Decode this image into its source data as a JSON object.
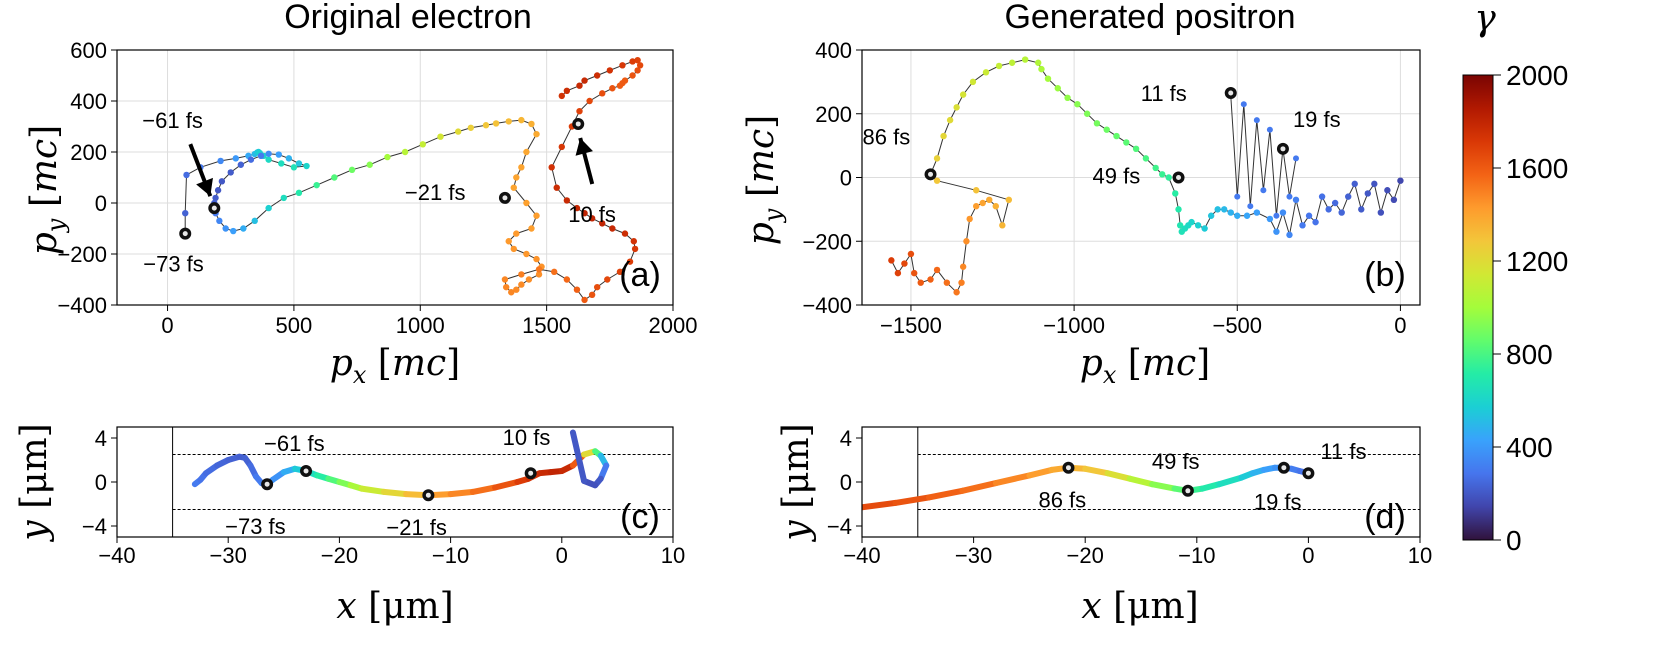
{
  "colorbar": {
    "label": "γ",
    "min": 0,
    "max": 2000,
    "ticks": [
      "2000",
      "1600",
      "1200",
      "800",
      "400",
      "0"
    ],
    "colors": [
      "#30123b",
      "#4145ab",
      "#4675ed",
      "#39a2fc",
      "#1bcfd4",
      "#24eca6",
      "#61fc6c",
      "#a4fc3b",
      "#d1e834",
      "#f3c63a",
      "#fe9b2d",
      "#f36315",
      "#d93806",
      "#b11901",
      "#7a0403"
    ]
  },
  "chart_data": [
    {
      "id": "a",
      "type": "scatter",
      "title": "Original electron",
      "panel_label": "(a)",
      "xlabel": "p_x [mc]",
      "ylabel": "p_y [mc]",
      "xlim": [
        -200,
        2000
      ],
      "ylim": [
        -400,
        600
      ],
      "xticks": [
        0,
        500,
        1000,
        1500,
        2000
      ],
      "yticks": [
        -400,
        -200,
        0,
        200,
        400,
        600
      ],
      "xtick_labels": [
        "0",
        "500",
        "1000",
        "1500",
        "2000"
      ],
      "ytick_labels": [
        "−400",
        "−200",
        "0",
        "200",
        "400",
        "600"
      ],
      "grid": true,
      "trajectory": {
        "px": [
          70,
          70,
          75,
          130,
          210,
          270,
          320,
          345,
          355,
          360,
          365,
          380,
          400,
          450,
          500,
          550,
          520,
          480,
          440,
          400,
          370,
          330,
          290,
          250,
          215,
          200,
          190,
          185,
          180,
          190,
          205,
          230,
          260,
          300,
          345,
          400,
          460,
          520,
          590,
          660,
          730,
          800,
          870,
          940,
          1010,
          1080,
          1150,
          1200,
          1260,
          1300,
          1350,
          1400,
          1440,
          1460,
          1420,
          1400,
          1380,
          1370,
          1420,
          1460,
          1440,
          1380,
          1350,
          1370,
          1420,
          1460,
          1480,
          1470,
          1430,
          1400,
          1380,
          1360,
          1340,
          1335,
          1400,
          1470,
          1530,
          1580,
          1620,
          1650,
          1680,
          1700,
          1740,
          1790,
          1830,
          1850,
          1845,
          1810,
          1760,
          1720,
          1680,
          1650,
          1620,
          1580,
          1540,
          1520,
          1560,
          1600,
          1630,
          1670,
          1720,
          1760,
          1790,
          1800,
          1810,
          1840,
          1860,
          1870,
          1860,
          1840,
          1800,
          1750,
          1700,
          1650,
          1630,
          1580,
          1560
        ],
        "py": [
          -120,
          -40,
          110,
          140,
          165,
          175,
          185,
          192,
          198,
          200,
          196,
          185,
          170,
          155,
          140,
          145,
          155,
          175,
          190,
          193,
          185,
          170,
          150,
          120,
          85,
          50,
          20,
          0,
          -20,
          -40,
          -70,
          -100,
          -110,
          -100,
          -70,
          -20,
          20,
          40,
          70,
          100,
          130,
          150,
          180,
          200,
          230,
          260,
          280,
          295,
          305,
          312,
          320,
          325,
          310,
          270,
          200,
          140,
          100,
          60,
          0,
          -50,
          -100,
          -120,
          -150,
          -180,
          -200,
          -220,
          -250,
          -280,
          -300,
          -320,
          -340,
          -350,
          -330,
          -300,
          -280,
          -260,
          -270,
          -300,
          -340,
          -380,
          -360,
          -330,
          -300,
          -270,
          -230,
          -180,
          -150,
          -120,
          -100,
          -80,
          -60,
          -40,
          -20,
          10,
          60,
          140,
          220,
          300,
          360,
          400,
          430,
          450,
          460,
          470,
          480,
          500,
          520,
          540,
          560,
          555,
          540,
          520,
          500,
          480,
          460,
          440,
          420,
          400,
          380
        ],
        "gamma": [
          200,
          230,
          260,
          300,
          350,
          400,
          450,
          500,
          540,
          560,
          580,
          600,
          620,
          640,
          660,
          600,
          540,
          480,
          420,
          360,
          300,
          260,
          230,
          210,
          200,
          200,
          210,
          230,
          260,
          300,
          340,
          380,
          420,
          460,
          520,
          580,
          640,
          700,
          760,
          820,
          880,
          940,
          1000,
          1060,
          1100,
          1150,
          1200,
          1250,
          1280,
          1300,
          1320,
          1340,
          1360,
          1380,
          1390,
          1400,
          1400,
          1400,
          1410,
          1420,
          1420,
          1430,
          1430,
          1440,
          1440,
          1450,
          1450,
          1460,
          1460,
          1470,
          1470,
          1480,
          1480,
          1480,
          1500,
          1520,
          1540,
          1560,
          1580,
          1600,
          1620,
          1640,
          1660,
          1680,
          1700,
          1720,
          1740,
          1760,
          1780,
          1800,
          1800,
          1800,
          1790,
          1780,
          1760,
          1740,
          1720,
          1700,
          1680,
          1660,
          1640,
          1620,
          1600,
          1600,
          1600,
          1620,
          1640,
          1660,
          1680,
          1700,
          1720,
          1740,
          1760,
          1780,
          1780,
          1760,
          1740,
          1720,
          1700
        ]
      },
      "markers": [
        {
          "label": "−73 fs",
          "x": 70,
          "y": -120
        },
        {
          "label": "−61 fs",
          "x": 185,
          "y": -20
        },
        {
          "label": "−21 fs",
          "x": 1335,
          "y": 20
        },
        {
          "label": "10 fs",
          "x": 1625,
          "y": 310
        }
      ]
    },
    {
      "id": "b",
      "type": "scatter",
      "title": "Generated positron",
      "panel_label": "(b)",
      "xlabel": "p_x [mc]",
      "ylabel": "p_y [mc]",
      "xlim": [
        -1650,
        60
      ],
      "ylim": [
        -400,
        400
      ],
      "xticks": [
        -1500,
        -1000,
        -500,
        0
      ],
      "yticks": [
        -400,
        -200,
        0,
        200,
        400
      ],
      "xtick_labels": [
        "−1500",
        "−1000",
        "−500",
        "0"
      ],
      "ytick_labels": [
        "−400",
        "−200",
        "0",
        "200",
        "400"
      ],
      "grid": true,
      "trajectory": {
        "px": [
          -1560,
          -1540,
          -1520,
          -1500,
          -1490,
          -1470,
          -1440,
          -1420,
          -1390,
          -1360,
          -1345,
          -1340,
          -1330,
          -1320,
          -1300,
          -1280,
          -1260,
          -1240,
          -1220,
          -1200,
          -1300,
          -1420,
          -1440,
          -1420,
          -1400,
          -1380,
          -1360,
          -1340,
          -1310,
          -1270,
          -1230,
          -1190,
          -1150,
          -1110,
          -1100,
          -1080,
          -1050,
          -1020,
          -990,
          -960,
          -930,
          -900,
          -870,
          -840,
          -810,
          -780,
          -750,
          -730,
          -710,
          -690,
          -680,
          -675,
          -670,
          -660,
          -650,
          -640,
          -620,
          -600,
          -580,
          -560,
          -540,
          -520,
          -500,
          -470,
          -440,
          -400,
          -380,
          -360,
          -340,
          -320,
          -300,
          -280,
          -260,
          -240,
          -220,
          -200,
          -180,
          -160,
          -140,
          -120,
          -100,
          -80,
          -60,
          -40,
          -20,
          0
        ],
        "py": [
          -260,
          -300,
          -270,
          -240,
          -300,
          -330,
          -320,
          -290,
          -330,
          -360,
          -330,
          -280,
          -200,
          -130,
          -90,
          -80,
          -70,
          -90,
          -150,
          -70,
          -40,
          -10,
          10,
          60,
          130,
          180,
          220,
          260,
          300,
          330,
          350,
          360,
          370,
          360,
          340,
          310,
          280,
          250,
          230,
          200,
          170,
          150,
          130,
          110,
          90,
          60,
          30,
          10,
          0,
          -50,
          -100,
          -150,
          -170,
          -160,
          -150,
          -140,
          -150,
          -160,
          -120,
          -100,
          -100,
          -110,
          -120,
          -120,
          -110,
          -130,
          -170,
          -110,
          -180,
          -70,
          -150,
          -120,
          -140,
          -60,
          -100,
          -80,
          -110,
          -60,
          -20,
          -100,
          -50,
          -20,
          -110,
          -40,
          -70,
          -10
        ],
        "gamma": [
          1700,
          1680,
          1660,
          1640,
          1620,
          1600,
          1580,
          1560,
          1540,
          1520,
          1500,
          1480,
          1460,
          1440,
          1420,
          1400,
          1380,
          1360,
          1340,
          1320,
          1300,
          1280,
          1260,
          1240,
          1220,
          1200,
          1180,
          1160,
          1140,
          1120,
          1100,
          1080,
          1060,
          1040,
          1020,
          1000,
          980,
          960,
          940,
          920,
          900,
          880,
          860,
          840,
          820,
          800,
          780,
          760,
          740,
          720,
          700,
          680,
          660,
          640,
          620,
          600,
          580,
          560,
          540,
          520,
          500,
          480,
          460,
          440,
          420,
          400,
          380,
          360,
          340,
          320,
          300,
          290,
          280,
          270,
          260,
          250,
          240,
          230,
          220,
          210,
          200,
          190,
          180,
          170,
          160,
          150
        ]
      },
      "spikes": {
        "px": [
          -520,
          -500,
          -480,
          -460,
          -440,
          -420,
          -400,
          -380,
          -360,
          -340,
          -320
        ],
        "py": [
          260,
          -60,
          230,
          -90,
          180,
          -40,
          150,
          -120,
          90,
          -60,
          60
        ]
      },
      "markers": [
        {
          "label": "86 fs",
          "x": -1440,
          "y": 10
        },
        {
          "label": "49 fs",
          "x": -680,
          "y": 0
        },
        {
          "label": "11 fs",
          "x": -520,
          "y": 265
        },
        {
          "label": "19 fs",
          "x": -360,
          "y": 90
        }
      ]
    },
    {
      "id": "c",
      "type": "line",
      "panel_label": "(c)",
      "xlabel": "x [μm]",
      "ylabel": "y [μm]",
      "xlim": [
        -40,
        10
      ],
      "ylim": [
        -5,
        5
      ],
      "xticks": [
        -40,
        -30,
        -20,
        -10,
        0,
        10
      ],
      "yticks": [
        -4,
        0,
        4
      ],
      "xtick_labels": [
        "−40",
        "−30",
        "−20",
        "−10",
        "0",
        "10"
      ],
      "ytick_labels": [
        "−4",
        "0",
        "4"
      ],
      "vline_x": -35,
      "hlines_y": [
        2.5,
        -2.5
      ],
      "trajectory": {
        "x": [
          -33,
          -32.5,
          -32,
          -31,
          -30,
          -29,
          -28.5,
          -28,
          -27.5,
          -27,
          -26.5,
          -26,
          -25,
          -24,
          -23,
          -22,
          -21,
          -20,
          -19,
          -18,
          -16,
          -14,
          -12,
          -10,
          -8,
          -6,
          -4,
          -3,
          -2,
          -1,
          0,
          1,
          2,
          3,
          3.5,
          4,
          3.5,
          3,
          2,
          1
        ],
        "y": [
          -0.2,
          0.2,
          0.8,
          1.5,
          2.0,
          2.3,
          2.2,
          1.5,
          0.5,
          -0.1,
          -0.2,
          0.2,
          0.9,
          1.2,
          1.0,
          0.6,
          0.3,
          0.0,
          -0.3,
          -0.6,
          -0.9,
          -1.1,
          -1.2,
          -1.1,
          -0.9,
          -0.5,
          0.0,
          0.3,
          0.8,
          0.9,
          1.0,
          1.5,
          2.5,
          2.8,
          2.4,
          1.5,
          0.3,
          -0.3,
          0.1,
          4.5
        ],
        "gamma": [
          300,
          280,
          260,
          240,
          230,
          220,
          230,
          260,
          300,
          320,
          340,
          380,
          460,
          560,
          640,
          720,
          820,
          920,
          1020,
          1120,
          1220,
          1320,
          1420,
          1480,
          1540,
          1620,
          1700,
          1740,
          1780,
          1800,
          1780,
          1600,
          1200,
          800,
          500,
          300,
          200,
          180,
          200,
          250
        ]
      },
      "markers": [
        {
          "label": "−73 fs",
          "x": -26.5,
          "y": -0.2
        },
        {
          "label": "−61 fs",
          "x": -23,
          "y": 1.0
        },
        {
          "label": "−21 fs",
          "x": -12,
          "y": -1.2
        },
        {
          "label": "10 fs",
          "x": -2.8,
          "y": 0.8
        }
      ]
    },
    {
      "id": "d",
      "type": "line",
      "panel_label": "(d)",
      "xlabel": "x [μm]",
      "ylabel": "y [μm]",
      "xlim": [
        -40,
        10
      ],
      "ylim": [
        -5,
        5
      ],
      "xticks": [
        -40,
        -30,
        -20,
        -10,
        0,
        10
      ],
      "yticks": [
        -4,
        0,
        4
      ],
      "xtick_labels": [
        "−40",
        "−30",
        "−20",
        "−10",
        "0",
        "10"
      ],
      "ytick_labels": [
        "−4",
        "0",
        "4"
      ],
      "vline_x": -35,
      "hlines_y": [
        2.5,
        -2.5
      ],
      "trajectory": {
        "x": [
          -40,
          -37,
          -34,
          -31,
          -28,
          -25,
          -23,
          -21.5,
          -20,
          -18,
          -16,
          -14,
          -12,
          -10.8,
          -9.5,
          -8,
          -6,
          -5,
          -4,
          -3,
          -2.2,
          -1.5,
          -0.8,
          0
        ],
        "y": [
          -2.3,
          -1.9,
          -1.4,
          -0.8,
          -0.1,
          0.6,
          1.1,
          1.3,
          1.2,
          0.8,
          0.3,
          -0.2,
          -0.6,
          -0.8,
          -0.6,
          -0.2,
          0.4,
          0.8,
          1.1,
          1.3,
          1.3,
          1.2,
          1.0,
          0.8
        ],
        "gamma": [
          1650,
          1620,
          1580,
          1540,
          1480,
          1420,
          1380,
          1340,
          1280,
          1180,
          1060,
          940,
          840,
          760,
          700,
          640,
          560,
          480,
          420,
          380,
          340,
          310,
          280,
          250
        ]
      },
      "markers": [
        {
          "label": "86 fs",
          "x": -21.5,
          "y": 1.3
        },
        {
          "label": "49 fs",
          "x": -10.8,
          "y": -0.8
        },
        {
          "label": "19 fs",
          "x": -2.2,
          "y": 1.3
        },
        {
          "label": "11 fs",
          "x": 0,
          "y": 0.8
        }
      ]
    }
  ]
}
